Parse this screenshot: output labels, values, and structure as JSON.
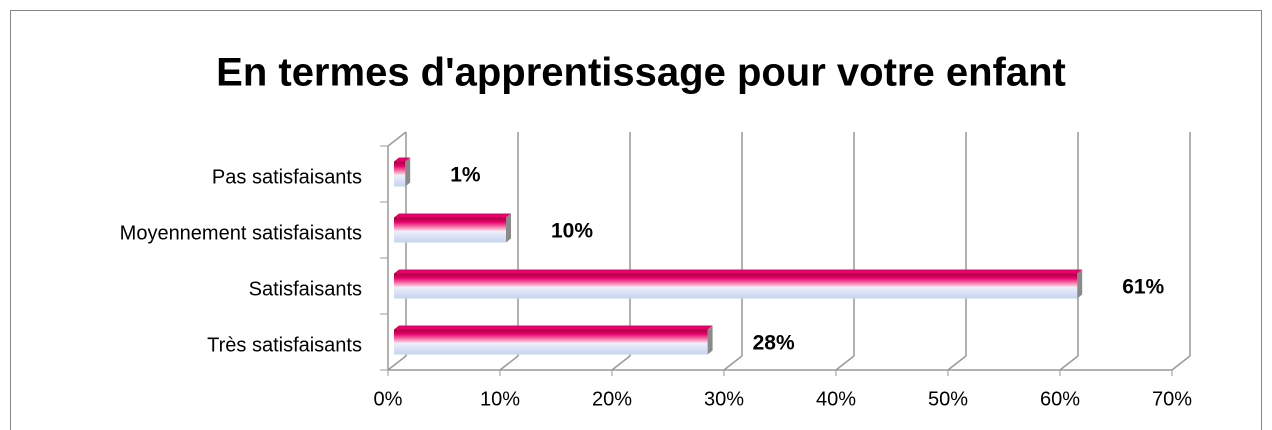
{
  "chart_data": {
    "type": "bar",
    "orientation": "horizontal",
    "title": "En termes d'apprentissage pour votre enfant",
    "categories": [
      "Pas satisfaisants",
      "Moyennement satisfaisants",
      "Satisfaisants",
      "Très satisfaisants"
    ],
    "values": [
      1,
      10,
      61,
      28
    ],
    "value_labels": [
      "1%",
      "10%",
      "61%",
      "28%"
    ],
    "color": "#e6006a",
    "xlim": [
      0,
      70
    ],
    "xticks": [
      {
        "value": 0,
        "label": "0%"
      },
      {
        "value": 10,
        "label": "10%"
      },
      {
        "value": 20,
        "label": "20%"
      },
      {
        "value": 30,
        "label": "30%"
      },
      {
        "value": 40,
        "label": "40%"
      },
      {
        "value": 50,
        "label": "50%"
      },
      {
        "value": 60,
        "label": "60%"
      },
      {
        "value": 70,
        "label": "70%"
      }
    ],
    "grid": true
  }
}
